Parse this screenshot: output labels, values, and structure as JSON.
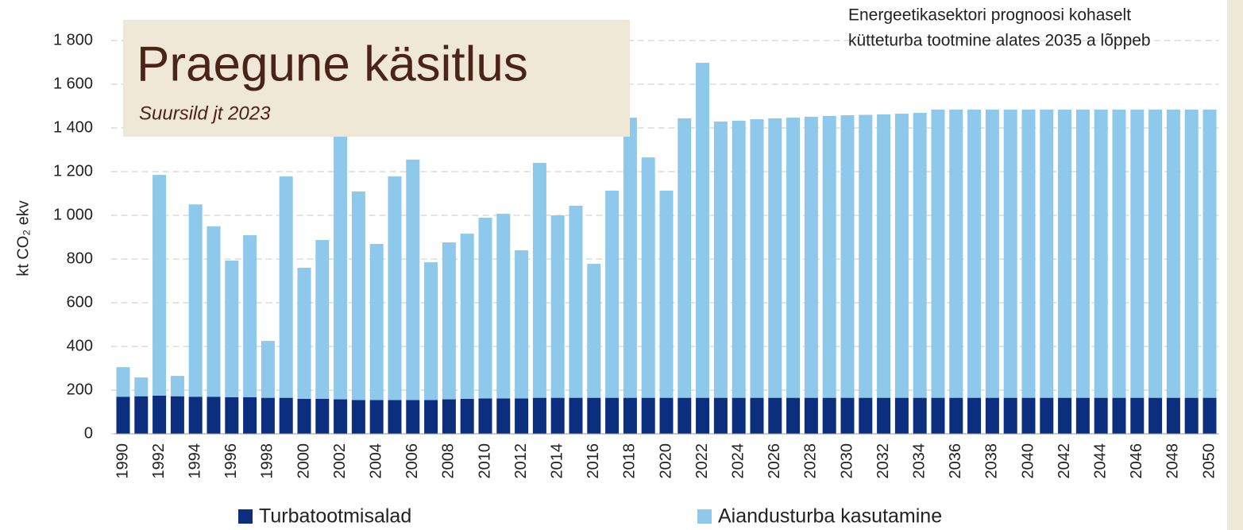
{
  "chart_data": {
    "type": "stacked_bar",
    "title": "Praegune käsitlus",
    "subtitle": "Suursild jt 2023",
    "annotation": [
      "Energeetikasektori prognoosi kohaselt",
      "kütteturba tootmine alates 2035 a lõppeb"
    ],
    "y_label": "kt CO₂ ekv",
    "categories": [
      "1990",
      null,
      "1992",
      null,
      "1994",
      null,
      "1996",
      null,
      "1998",
      null,
      "2000",
      null,
      "2002",
      null,
      "2004",
      null,
      "2006",
      null,
      "2008",
      null,
      "2010",
      null,
      "2012",
      null,
      "2014",
      null,
      "2016",
      null,
      "2018",
      null,
      "2020",
      null,
      "2022",
      null,
      "2024",
      null,
      "2026",
      null,
      "2028",
      null,
      "2030",
      null,
      "2032",
      null,
      "2034",
      null,
      "2036",
      null,
      "2038",
      null,
      "2040",
      null,
      "2042",
      null,
      "2044",
      null,
      "2046",
      null,
      "2048",
      null,
      "2050"
    ],
    "series": [
      {
        "name": "Turbatootmisalad",
        "color": "#0b2f7e",
        "values": [
          170,
          172,
          175,
          172,
          170,
          170,
          168,
          168,
          165,
          165,
          160,
          160,
          158,
          155,
          155,
          155,
          155,
          155,
          158,
          160,
          162,
          162,
          162,
          165,
          165,
          165,
          165,
          165,
          165,
          165,
          165,
          165,
          165,
          165,
          165,
          165,
          165,
          165,
          165,
          165,
          165,
          165,
          165,
          165,
          165,
          165,
          165,
          165,
          165,
          165,
          165,
          165,
          165,
          165,
          165,
          165,
          165,
          165,
          165,
          165,
          165
        ]
      },
      {
        "name": "Aiandusturba kasutamine",
        "color": "#8ec8ea",
        "values": [
          135,
          86,
          1010,
          93,
          880,
          780,
          625,
          741,
          260,
          1013,
          600,
          727,
          1242,
          954,
          714,
          1023,
          1100,
          630,
          718,
          756,
          827,
          845,
          678,
          1075,
          835,
          879,
          613,
          948,
          1282,
          1100,
          948,
          1279,
          1533,
          1264,
          1268,
          1275,
          1279,
          1282,
          1286,
          1290,
          1293,
          1295,
          1297,
          1300,
          1304,
          1319,
          1319,
          1319,
          1319,
          1319,
          1319,
          1319,
          1319,
          1319,
          1319,
          1319,
          1319,
          1319,
          1319,
          1319,
          1319
        ]
      }
    ],
    "ylim": [
      0,
      1800
    ],
    "yticks": [
      0,
      200,
      400,
      600,
      800,
      {
        "value": 1000,
        "label": "1 000"
      },
      {
        "value": 1200,
        "label": "1 200"
      },
      {
        "value": 1400,
        "label": "1 400"
      },
      {
        "value": 1600,
        "label": "1 600"
      },
      {
        "value": 1800,
        "label": "1 800"
      }
    ],
    "grid": true
  }
}
